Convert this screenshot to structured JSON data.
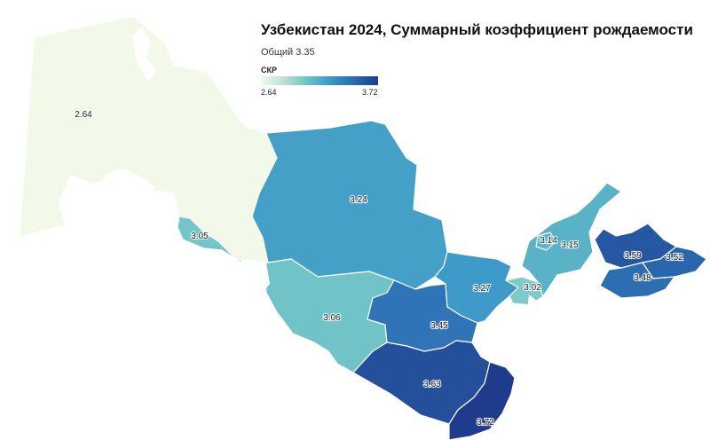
{
  "title": "Узбекистан 2024, Суммарный коэффициент рождаемости",
  "subtitle": "Общий 3.35",
  "legend": {
    "title": "СКР",
    "min_label": "2.64",
    "max_label": "3.72",
    "min": 2.64,
    "max": 3.72,
    "color_stops": [
      "#f3f9e9",
      "#b8e0d4",
      "#6cc2c6",
      "#3a96c8",
      "#2b69b0",
      "#1f3c8c"
    ]
  },
  "map_data": {
    "regions": [
      {
        "id": "karakalpakstan",
        "value": 2.64,
        "label": "2.64"
      },
      {
        "id": "navoi",
        "value": 3.24,
        "label": "3.24"
      },
      {
        "id": "khorezm",
        "value": 3.05,
        "label": "3.05"
      },
      {
        "id": "bukhara",
        "value": 3.06,
        "label": "3.06"
      },
      {
        "id": "samarkand",
        "value": 3.45,
        "label": "3.45"
      },
      {
        "id": "jizzakh",
        "value": 3.27,
        "label": "3.27"
      },
      {
        "id": "kashkadarya",
        "value": 3.63,
        "label": "3.63"
      },
      {
        "id": "surkhandarya",
        "value": 3.72,
        "label": "3.72"
      },
      {
        "id": "syrdarya",
        "value": 3.02,
        "label": "3.02"
      },
      {
        "id": "tashkent-city",
        "value": 3.14,
        "label": "3.14"
      },
      {
        "id": "tashkent-region",
        "value": 3.15,
        "label": "3.15"
      },
      {
        "id": "namangan",
        "value": 3.59,
        "label": "3.59"
      },
      {
        "id": "andijan",
        "value": 3.52,
        "label": "3.52"
      },
      {
        "id": "fergana",
        "value": 3.48,
        "label": "3.48"
      }
    ]
  }
}
